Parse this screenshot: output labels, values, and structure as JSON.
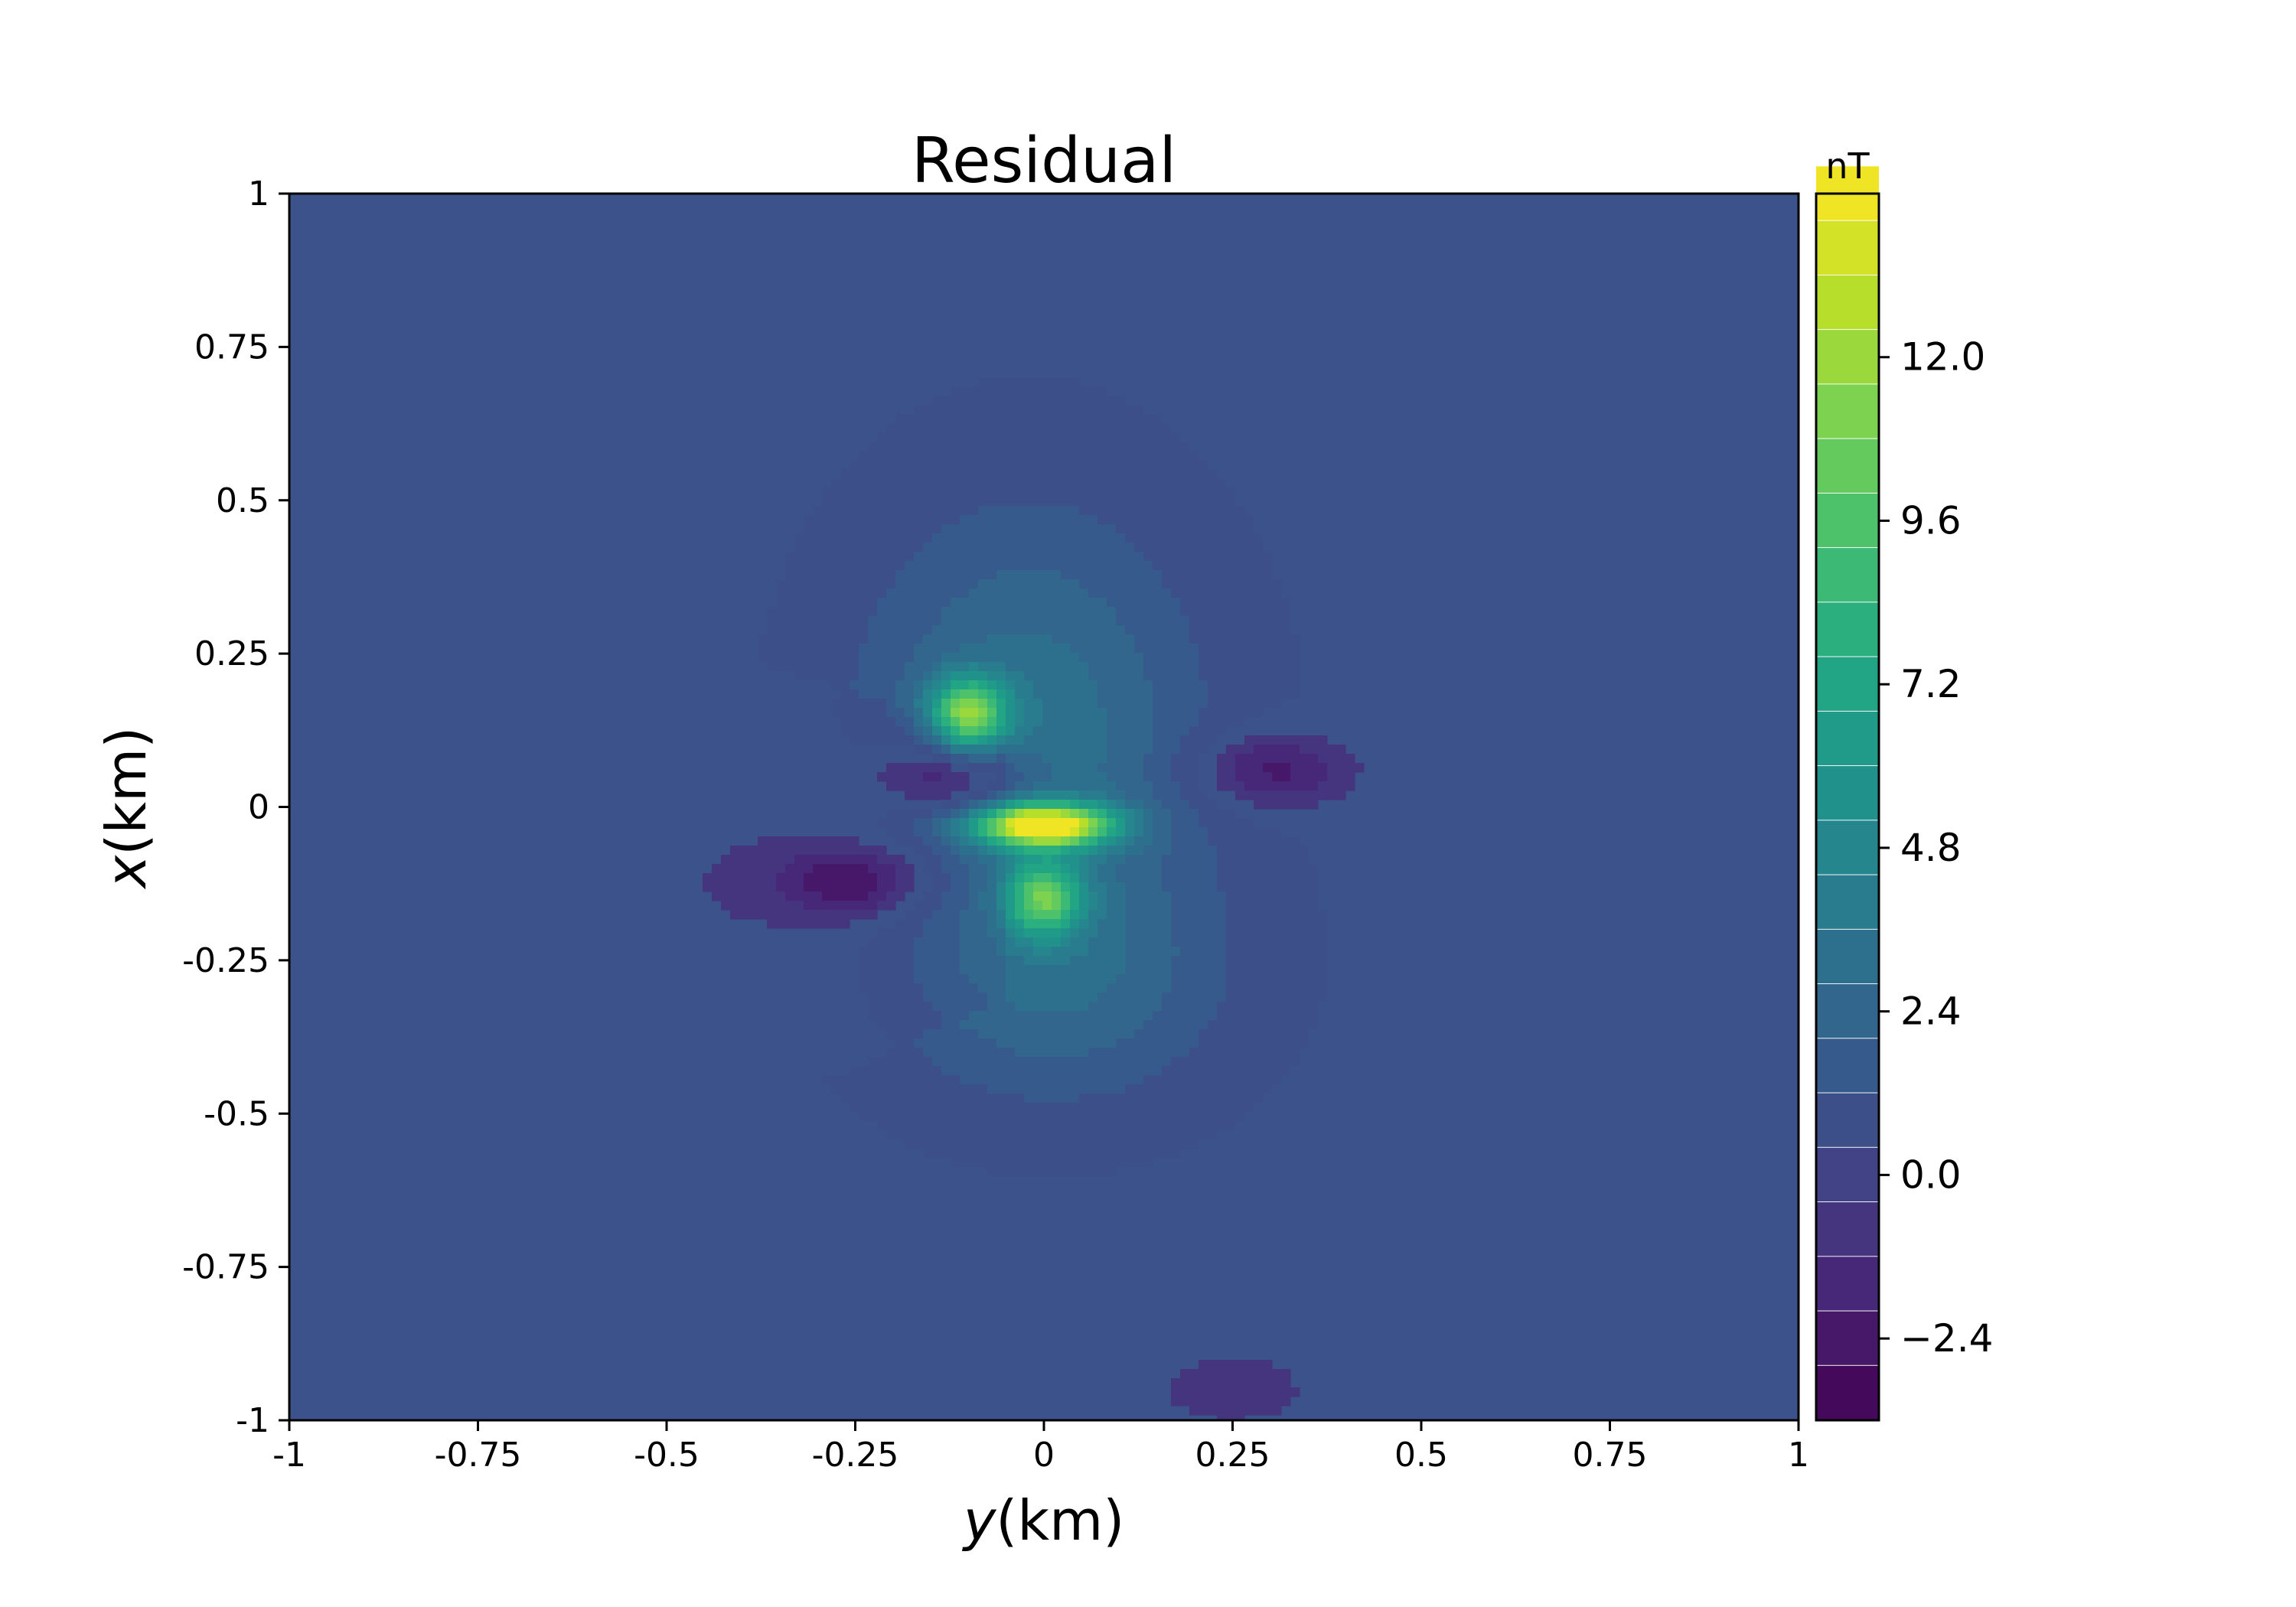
{
  "chart_data": {
    "type": "heatmap",
    "title": "Residual",
    "xlabel_var": "y",
    "xlabel_unit": "(km)",
    "ylabel_var": "x",
    "ylabel_unit": "(km)",
    "xlim": [
      -1,
      1
    ],
    "ylim": [
      -1,
      1
    ],
    "x_ticks": [
      -1,
      -0.75,
      -0.5,
      -0.25,
      0,
      0.25,
      0.5,
      0.75,
      1
    ],
    "x_tick_labels": [
      "-1",
      "-0.75",
      "-0.5",
      "-0.25",
      "0",
      "0.25",
      "0.5",
      "0.75",
      "1"
    ],
    "y_ticks": [
      -1,
      -0.75,
      -0.5,
      -0.25,
      0,
      0.25,
      0.5,
      0.75,
      1
    ],
    "y_tick_labels": [
      "-1",
      "-0.75",
      "-0.5",
      "-0.25",
      "0",
      "0.25",
      "0.5",
      "0.75",
      "1"
    ],
    "colorbar": {
      "units": "nT",
      "range": [
        -3.6,
        14.4
      ],
      "level_step": 0.8,
      "colormap": "viridis",
      "ticks": [
        -2.4,
        0.0,
        2.4,
        4.8,
        7.2,
        9.6,
        12.0
      ],
      "tick_labels": [
        "−2.4",
        "0.0",
        "2.4",
        "4.8",
        "7.2",
        "9.6",
        "12.0"
      ]
    },
    "background_level": 0.2,
    "grid": false,
    "features": [
      {
        "kind": "peak",
        "y": 0.0,
        "x": -0.03,
        "value": 14.0
      },
      {
        "kind": "peak",
        "y": -0.1,
        "x": 0.15,
        "value": 9.5
      },
      {
        "kind": "peak",
        "y": 0.0,
        "x": -0.15,
        "value": 8.0
      },
      {
        "kind": "trough",
        "y": -0.25,
        "x": -0.12,
        "value": -3.0
      },
      {
        "kind": "trough",
        "y": -0.12,
        "x": 0.05,
        "value": -3.4
      },
      {
        "kind": "trough",
        "y": 0.3,
        "x": 0.06,
        "value": -2.5
      },
      {
        "kind": "trough",
        "y": 0.25,
        "x": -0.95,
        "value": -1.0
      }
    ]
  }
}
